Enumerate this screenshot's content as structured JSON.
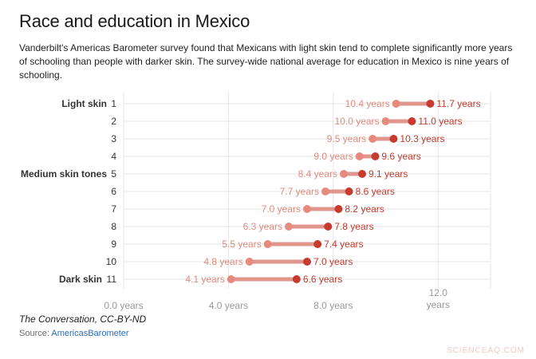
{
  "title": "Race and education in Mexico",
  "subtitle": "Vanderbilt's Americas Barometer survey found that Mexicans with light skin tend to complete significantly more years of schooling than people with darker skin. The survey-wide national average for education in Mexico is nine years of schooling.",
  "credit": "The Conversation, CC-BY-ND",
  "source_label": "Source:",
  "source_link": "AmericasBarometer",
  "watermark": "SCIENCEAQ.COM",
  "colors": {
    "low_dot": "#e8897d",
    "high_dot": "#c73a2e",
    "bar": "#e0968c",
    "low_text": "#e08a7e",
    "high_text": "#c0392b",
    "grid": "#e6e6e6",
    "axis_text": "#999999"
  },
  "chart_data": {
    "type": "dumbbell",
    "xlim": [
      0,
      14
    ],
    "x_ticks": [
      0,
      4,
      8,
      12
    ],
    "x_tick_labels": [
      "0.0 years",
      "4.0 years",
      "8.0 years",
      "12.0\nyears"
    ],
    "categories": [
      "1",
      "2",
      "3",
      "4",
      "5",
      "6",
      "7",
      "8",
      "9",
      "10",
      "11"
    ],
    "group_labels": {
      "1": "Light skin",
      "5": "Medium skin tones",
      "11": "Dark skin"
    },
    "low": [
      10.4,
      10.0,
      9.5,
      9.0,
      8.4,
      7.7,
      7.0,
      6.3,
      5.5,
      4.8,
      4.1
    ],
    "high": [
      11.7,
      11.0,
      10.3,
      9.6,
      9.1,
      8.6,
      8.2,
      7.8,
      7.4,
      7.0,
      6.6
    ],
    "low_labels": [
      "10.4 years",
      "10.0 years",
      "9.5 years",
      "9.0 years",
      "8.4 years",
      "7.7 years",
      "7.0 years",
      "6.3 years",
      "5.5 years",
      "4.8 years",
      "4.1 years"
    ],
    "high_labels": [
      "11.7 years",
      "11.0 years",
      "10.3 years",
      "9.6 years",
      "9.1 years",
      "8.6 years",
      "8.2 years",
      "7.8 years",
      "7.4 years",
      "7.0 years",
      "6.6 years"
    ],
    "grid": true
  }
}
